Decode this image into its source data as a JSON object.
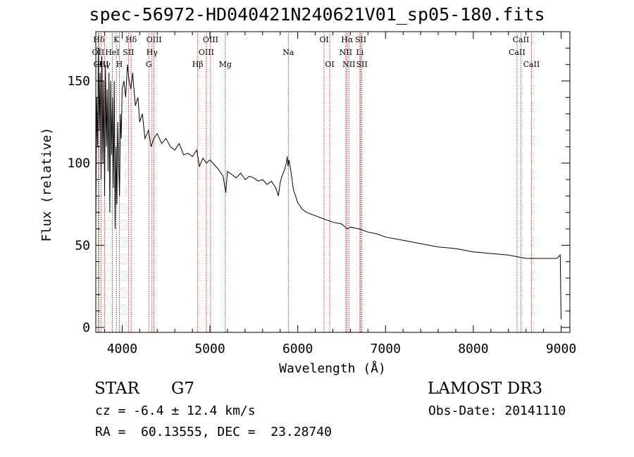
{
  "header": {
    "title": "spec-56972-HD040421N240621V01_sp05-180.fits"
  },
  "footer": {
    "classification": "STAR",
    "subclass": "G7",
    "survey": "LAMOST DR3",
    "redshift": "cz = -6.4 ± 12.4 km/s",
    "obs_date": "Obs-Date: 20141110",
    "coordinates": "RA =  60.13555, DEC =  23.28740"
  },
  "chart_data": {
    "type": "line",
    "xlabel": "Wavelength (Å)",
    "ylabel": "Flux (relative)",
    "xlim": [
      3700,
      9100
    ],
    "ylim": [
      -3,
      180
    ],
    "xticks": [
      4000,
      5000,
      6000,
      7000,
      8000,
      9000
    ],
    "yticks": [
      0,
      50,
      100,
      150
    ],
    "series": [
      {
        "name": "spectrum",
        "points": [
          [
            3700,
            60
          ],
          [
            3710,
            140
          ],
          [
            3720,
            110
          ],
          [
            3730,
            170
          ],
          [
            3740,
            120
          ],
          [
            3750,
            155
          ],
          [
            3760,
            90
          ],
          [
            3770,
            165
          ],
          [
            3780,
            100
          ],
          [
            3790,
            150
          ],
          [
            3800,
            80
          ],
          [
            3810,
            160
          ],
          [
            3820,
            110
          ],
          [
            3830,
            145
          ],
          [
            3840,
            95
          ],
          [
            3850,
            155
          ],
          [
            3860,
            70
          ],
          [
            3870,
            150
          ],
          [
            3880,
            105
          ],
          [
            3890,
            140
          ],
          [
            3900,
            85
          ],
          [
            3910,
            150
          ],
          [
            3920,
            60
          ],
          [
            3930,
            110
          ],
          [
            3940,
            75
          ],
          [
            3950,
            125
          ],
          [
            3960,
            100
          ],
          [
            3970,
            80
          ],
          [
            3980,
            130
          ],
          [
            3990,
            115
          ],
          [
            4000,
            145
          ],
          [
            4020,
            150
          ],
          [
            4040,
            140
          ],
          [
            4060,
            160
          ],
          [
            4080,
            150
          ],
          [
            4100,
            145
          ],
          [
            4120,
            155
          ],
          [
            4150,
            135
          ],
          [
            4180,
            140
          ],
          [
            4200,
            125
          ],
          [
            4230,
            130
          ],
          [
            4260,
            115
          ],
          [
            4300,
            120
          ],
          [
            4330,
            110
          ],
          [
            4360,
            115
          ],
          [
            4400,
            118
          ],
          [
            4450,
            112
          ],
          [
            4500,
            115
          ],
          [
            4550,
            110
          ],
          [
            4600,
            108
          ],
          [
            4650,
            112
          ],
          [
            4700,
            105
          ],
          [
            4750,
            106
          ],
          [
            4800,
            104
          ],
          [
            4850,
            108
          ],
          [
            4880,
            98
          ],
          [
            4920,
            103
          ],
          [
            4960,
            100
          ],
          [
            5000,
            102
          ],
          [
            5050,
            99
          ],
          [
            5100,
            96
          ],
          [
            5150,
            92
          ],
          [
            5180,
            82
          ],
          [
            5200,
            95
          ],
          [
            5250,
            93
          ],
          [
            5300,
            91
          ],
          [
            5350,
            94
          ],
          [
            5400,
            90
          ],
          [
            5450,
            92
          ],
          [
            5500,
            91
          ],
          [
            5550,
            89
          ],
          [
            5600,
            90
          ],
          [
            5650,
            87
          ],
          [
            5700,
            89
          ],
          [
            5750,
            85
          ],
          [
            5780,
            80
          ],
          [
            5800,
            88
          ],
          [
            5820,
            92
          ],
          [
            5850,
            96
          ],
          [
            5870,
            100
          ],
          [
            5880,
            104
          ],
          [
            5890,
            98
          ],
          [
            5900,
            102
          ],
          [
            5920,
            96
          ],
          [
            5950,
            84
          ],
          [
            6000,
            76
          ],
          [
            6050,
            72
          ],
          [
            6100,
            70
          ],
          [
            6200,
            68
          ],
          [
            6300,
            66
          ],
          [
            6400,
            64
          ],
          [
            6500,
            63
          ],
          [
            6563,
            60
          ],
          [
            6600,
            61
          ],
          [
            6700,
            60
          ],
          [
            6800,
            58
          ],
          [
            6900,
            57
          ],
          [
            7000,
            55
          ],
          [
            7200,
            53
          ],
          [
            7400,
            51
          ],
          [
            7600,
            49
          ],
          [
            7800,
            48
          ],
          [
            8000,
            46
          ],
          [
            8200,
            45
          ],
          [
            8400,
            44
          ],
          [
            8600,
            42
          ],
          [
            8800,
            42
          ],
          [
            8950,
            42
          ],
          [
            8990,
            44
          ],
          [
            9000,
            5
          ]
        ]
      }
    ],
    "lines": [
      {
        "label": "Hδ",
        "wl": 3735,
        "row": 0,
        "anchor": "middle"
      },
      {
        "label": "K",
        "wl": 3934,
        "row": 0,
        "anchor": "middle"
      },
      {
        "label": "Hδ",
        "wl": 4102,
        "row": 0,
        "anchor": "middle"
      },
      {
        "label": "OIII",
        "wl": 4363,
        "row": 0,
        "anchor": "middle"
      },
      {
        "label": "OIII",
        "wl": 5007,
        "row": 0,
        "anchor": "middle"
      },
      {
        "label": "OI",
        "wl": 6300,
        "row": 0,
        "anchor": "middle"
      },
      {
        "label": "Hα",
        "wl": 6563,
        "row": 0,
        "anchor": "middle"
      },
      {
        "label": "SII",
        "wl": 6717,
        "row": 0,
        "anchor": "middle"
      },
      {
        "label": "CaII",
        "wl": 8542,
        "row": 0,
        "anchor": "middle"
      },
      {
        "label": "OII",
        "wl": 3727,
        "row": 1,
        "anchor": "middle"
      },
      {
        "label": "HeI",
        "wl": 3889,
        "row": 1,
        "anchor": "middle"
      },
      {
        "label": "SII",
        "wl": 4072,
        "row": 1,
        "anchor": "middle"
      },
      {
        "label": "Hγ",
        "wl": 4340,
        "row": 1,
        "anchor": "middle"
      },
      {
        "label": "OIII",
        "wl": 4959,
        "row": 1,
        "anchor": "middle"
      },
      {
        "label": "Na",
        "wl": 5893,
        "row": 1,
        "anchor": "middle"
      },
      {
        "label": "NII",
        "wl": 6548,
        "row": 1,
        "anchor": "middle"
      },
      {
        "label": "Li",
        "wl": 6708,
        "row": 1,
        "anchor": "middle"
      },
      {
        "label": "CaII",
        "wl": 8498,
        "row": 1,
        "anchor": "middle"
      },
      {
        "label": "OIII",
        "wl": 3760,
        "row": 2,
        "anchor": "middle"
      },
      {
        "label": "Hγ",
        "wl": 3800,
        "row": 2,
        "anchor": "middle"
      },
      {
        "label": "H",
        "wl": 3968,
        "row": 2,
        "anchor": "middle"
      },
      {
        "label": "G",
        "wl": 4304,
        "row": 2,
        "anchor": "middle"
      },
      {
        "label": "Hβ",
        "wl": 4861,
        "row": 2,
        "anchor": "middle"
      },
      {
        "label": "Mg",
        "wl": 5175,
        "row": 2,
        "anchor": "middle"
      },
      {
        "label": "OI",
        "wl": 6364,
        "row": 2,
        "anchor": "middle"
      },
      {
        "label": "NII",
        "wl": 6583,
        "row": 2,
        "anchor": "middle"
      },
      {
        "label": "SII",
        "wl": 6731,
        "row": 2,
        "anchor": "middle"
      },
      {
        "label": "CaII",
        "wl": 8662,
        "row": 2,
        "anchor": "middle"
      }
    ]
  }
}
